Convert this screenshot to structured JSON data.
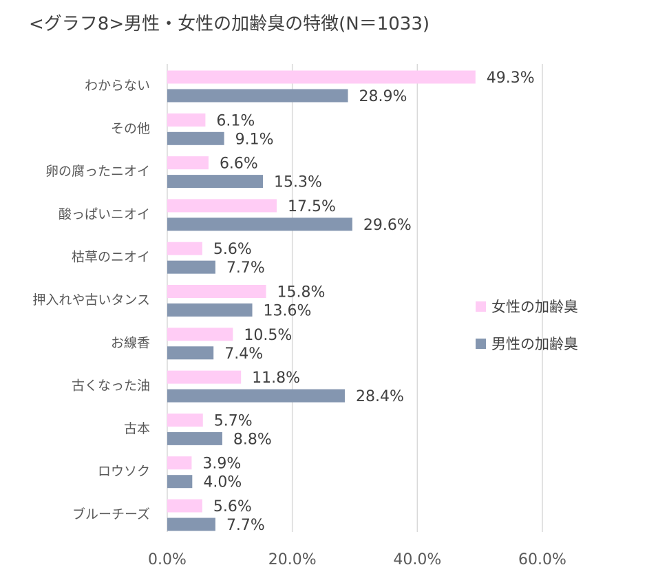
{
  "chart_data": {
    "type": "bar",
    "orientation": "horizontal",
    "title": "<グラフ8>男性・女性の加齢臭の特徴(N＝1033)",
    "categories": [
      "わからない",
      "その他",
      "卵の腐ったニオイ",
      "酸っぱいニオイ",
      "枯草のニオイ",
      "押入れや古いタンス",
      "お線香",
      "古くなった油",
      "古本",
      "ロウソク",
      "ブルーチーズ"
    ],
    "series": [
      {
        "name": "女性の加齢臭",
        "color": "#ffccf5",
        "values": [
          49.3,
          6.1,
          6.6,
          17.5,
          5.6,
          15.8,
          10.5,
          11.8,
          5.7,
          3.9,
          5.6
        ],
        "labels": [
          "49.3%",
          "6.1%",
          "6.6%",
          "17.5%",
          "5.6%",
          "15.8%",
          "10.5%",
          "11.8%",
          "5.7%",
          "3.9%",
          "5.6%"
        ]
      },
      {
        "name": "男性の加齢臭",
        "color": "#8496b0",
        "values": [
          28.9,
          9.1,
          15.3,
          29.6,
          7.7,
          13.6,
          7.4,
          28.4,
          8.8,
          4.0,
          7.7
        ],
        "labels": [
          "28.9%",
          "9.1%",
          "15.3%",
          "29.6%",
          "7.7%",
          "13.6%",
          "7.4%",
          "28.4%",
          "8.8%",
          "4.0%",
          "7.7%"
        ]
      }
    ],
    "xlim": [
      0,
      60
    ],
    "xticks": [
      0,
      20,
      40,
      60
    ],
    "xtick_labels": [
      "0.0%",
      "20.0%",
      "40.0%",
      "60.0%"
    ],
    "grid": true,
    "legend_position": "right"
  }
}
